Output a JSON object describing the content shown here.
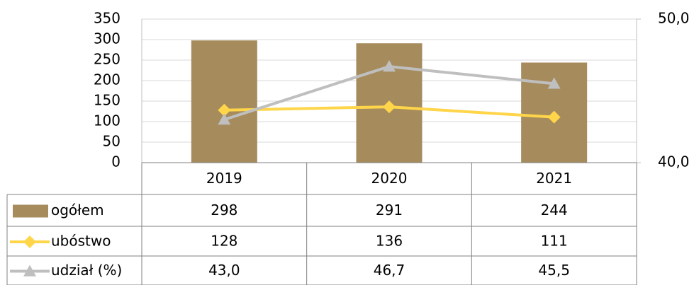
{
  "chart_data": {
    "type": "bar",
    "categories": [
      "2019",
      "2020",
      "2021"
    ],
    "series": [
      {
        "name": "ogółem",
        "type": "bar",
        "color": "#a68b5d",
        "values": [
          298,
          291,
          244
        ]
      },
      {
        "name": "ubóstwo",
        "type": "line",
        "marker": "diamond",
        "color": "#ffd54a",
        "values": [
          128,
          136,
          111
        ]
      },
      {
        "name": "udział (%)",
        "type": "line",
        "marker": "triangle",
        "axis": "y2",
        "color": "#bfbfbf",
        "values": [
          43.0,
          46.7,
          45.5
        ],
        "value_labels": [
          "43,0",
          "46,7",
          "45,5"
        ]
      }
    ],
    "ylim": [
      0,
      350
    ],
    "yticks": [
      0,
      50,
      100,
      150,
      200,
      250,
      300,
      350
    ],
    "y2lim": [
      40,
      50
    ],
    "y2ticks": [
      {
        "value": 40,
        "label": "40,0"
      },
      {
        "value": 50,
        "label": "50,0"
      }
    ],
    "grid": true,
    "data_table": true
  }
}
